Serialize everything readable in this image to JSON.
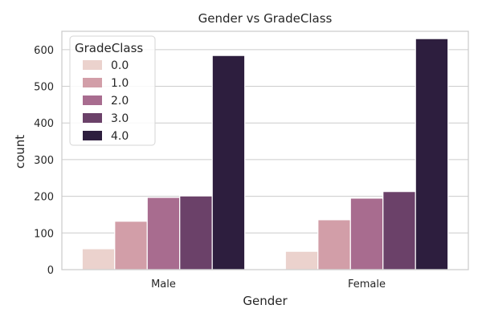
{
  "chart_data": {
    "type": "bar",
    "title": "Gender vs GradeClass",
    "xlabel": "Gender",
    "ylabel": "count",
    "categories": [
      "Male",
      "Female"
    ],
    "legend_title": "GradeClass",
    "legend_position": "top-left",
    "grid": "y",
    "ylim": [
      0,
      650
    ],
    "yticks": [
      0,
      100,
      200,
      300,
      400,
      500,
      600
    ],
    "series": [
      {
        "name": "0.0",
        "values": [
          57,
          50
        ],
        "color": "#ebd2cd"
      },
      {
        "name": "1.0",
        "values": [
          132,
          136
        ],
        "color": "#d29ea8"
      },
      {
        "name": "2.0",
        "values": [
          197,
          195
        ],
        "color": "#a86c8f"
      },
      {
        "name": "3.0",
        "values": [
          201,
          213
        ],
        "color": "#6b4169"
      },
      {
        "name": "4.0",
        "values": [
          584,
          630
        ],
        "color": "#2d1e3e"
      }
    ]
  }
}
